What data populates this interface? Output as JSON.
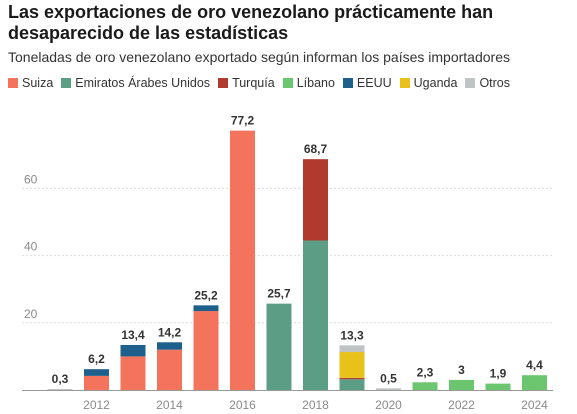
{
  "header": {
    "title": "Las exportaciones de oro venezolano prácticamente han desaparecido de las estadísticas",
    "subtitle": "Toneladas de oro venezolano exportado según informan los países importadores"
  },
  "chart_data": {
    "type": "bar",
    "stacked": true,
    "categories": [
      "2011",
      "2012",
      "2013",
      "2014",
      "2015",
      "2016",
      "2017",
      "2018",
      "2019",
      "2020",
      "2021",
      "2022",
      "2023",
      "2024"
    ],
    "x_tick_labels": [
      "",
      "2012",
      "",
      "2014",
      "",
      "2016",
      "",
      "2018",
      "",
      "2020",
      "",
      "2022",
      "",
      "2024"
    ],
    "totals_labels": [
      "0,3",
      "6,2",
      "13,4",
      "14,2",
      "25,2",
      "77,2",
      "25,7",
      "68,7",
      "13,3",
      "0,5",
      "2,3",
      "3",
      "1,9",
      "4,4"
    ],
    "series": [
      {
        "name": "Suiza",
        "color": "#f4735d",
        "values": [
          0,
          4.2,
          10,
          12,
          23.5,
          77.2,
          0,
          0,
          0,
          0,
          0,
          0,
          0,
          0
        ]
      },
      {
        "name": "Emiratos Árabes Unidos",
        "color": "#5b9e85",
        "values": [
          0,
          0,
          0,
          0,
          0,
          0,
          25.7,
          44.5,
          3.2,
          0,
          0,
          0,
          0,
          0
        ]
      },
      {
        "name": "Turquía",
        "color": "#b03a2e",
        "values": [
          0,
          0,
          0,
          0,
          0,
          0,
          0,
          24.2,
          0.4,
          0,
          0,
          0,
          0,
          0
        ]
      },
      {
        "name": "Líbano",
        "color": "#6cc66f",
        "values": [
          0,
          0,
          0,
          0,
          0,
          0,
          0,
          0,
          0,
          0,
          2.3,
          3,
          1.9,
          4.4
        ]
      },
      {
        "name": "EEUU",
        "color": "#1e5f8c",
        "values": [
          0,
          2,
          3.4,
          2.2,
          1.7,
          0,
          0,
          0,
          0,
          0,
          0,
          0,
          0,
          0
        ]
      },
      {
        "name": "Uganda",
        "color": "#e8c21a",
        "values": [
          0,
          0,
          0,
          0,
          0,
          0,
          0,
          0,
          7.7,
          0,
          0,
          0,
          0,
          0
        ]
      },
      {
        "name": "Otros",
        "color": "#bfc3c3",
        "values": [
          0.3,
          0,
          0,
          0,
          0,
          0,
          0,
          0,
          2,
          0.5,
          0,
          0,
          0,
          0
        ]
      }
    ],
    "yticks": [
      20,
      40,
      60
    ],
    "ylim": [
      0,
      80
    ],
    "grid": true,
    "legend_position": "top"
  }
}
